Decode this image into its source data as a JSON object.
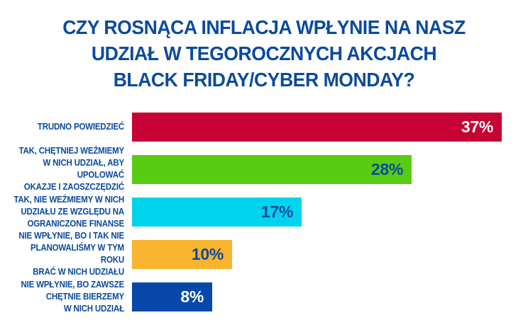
{
  "colors": {
    "background": "#FFFFFF",
    "title_text": "#0B4A9E",
    "label_text": "#0B4A9E"
  },
  "chart_data": {
    "type": "bar",
    "orientation": "horizontal",
    "title": "CZY ROSNĄCA INFLACJA WPŁYNIE NA NASZ\nUDZIAŁ W TEGOROCZNYCH AKCJACH\nBLACK FRIDAY/CYBER MONDAY?",
    "categories": [
      "TRUDNO POWIEDZIEĆ",
      "TAK, CHĘTNIEJ WEŹMIEMY\nW NICH UDZIAŁ, ABY UPOLOWAĆ\nOKAZJE I ZAOSZCZĘDZIĆ",
      "TAK, NIE WEŹMIEMY W NICH\nUDZIAŁU ZE WZGLĘDU NA\nOGRANICZONE FINANSE",
      "NIE WPŁYNIE, BO I TAK NIE\nPLANOWALIŚMY W TYM ROKU\nBRAĆ W NICH UDZIAŁU",
      "NIE WPŁYNIE, BO ZAWSZE\nCHĘTNIE BIERZEMY\nW NICH UDZIAŁ"
    ],
    "values": [
      37,
      28,
      17,
      10,
      8
    ],
    "value_suffix": "%",
    "bar_colors": [
      "#C60333",
      "#58CB13",
      "#00D3EE",
      "#F8B42E",
      "#0848AB"
    ],
    "value_label_colors": [
      "#FFFFFF",
      "#0B4A9E",
      "#0B4A9E",
      "#0B4A9E",
      "#FFFFFF"
    ],
    "xlim": [
      0,
      39.5
    ],
    "grid": false,
    "legend": false,
    "xlabel": "",
    "ylabel": ""
  }
}
